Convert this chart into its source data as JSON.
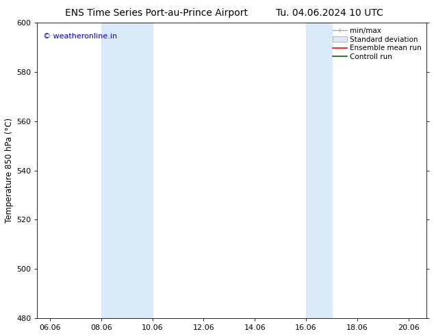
{
  "title_left": "ENS Time Series Port-au-Prince Airport",
  "title_right": "Tu. 04.06.2024 10 UTC",
  "ylabel": "Temperature 850 hPa (°C)",
  "watermark": "© weatheronline.in",
  "watermark_color": "#0000cc",
  "xlim_left": 5.5,
  "xlim_right": 20.7,
  "ylim_bottom": 480,
  "ylim_top": 600,
  "yticks": [
    480,
    500,
    520,
    540,
    560,
    580,
    600
  ],
  "xtick_labels": [
    "06.06",
    "08.06",
    "10.06",
    "12.06",
    "14.06",
    "16.06",
    "18.06",
    "20.06"
  ],
  "xtick_positions": [
    6.0,
    8.0,
    10.0,
    12.0,
    14.0,
    16.0,
    18.0,
    20.0
  ],
  "shaded_bands": [
    {
      "x_start": 8.0,
      "x_end": 10.0
    },
    {
      "x_start": 16.0,
      "x_end": 17.0
    }
  ],
  "shaded_color": "#daeaf8",
  "legend_labels": [
    "min/max",
    "Standard deviation",
    "Ensemble mean run",
    "Controll run"
  ],
  "legend_line_colors": [
    "#aaaaaa",
    "#cccccc",
    "#ff0000",
    "#006600"
  ],
  "background_color": "#ffffff",
  "spine_color": "#000000",
  "title_fontsize": 10,
  "label_fontsize": 8.5,
  "tick_fontsize": 8,
  "watermark_fontsize": 8,
  "legend_fontsize": 7.5
}
